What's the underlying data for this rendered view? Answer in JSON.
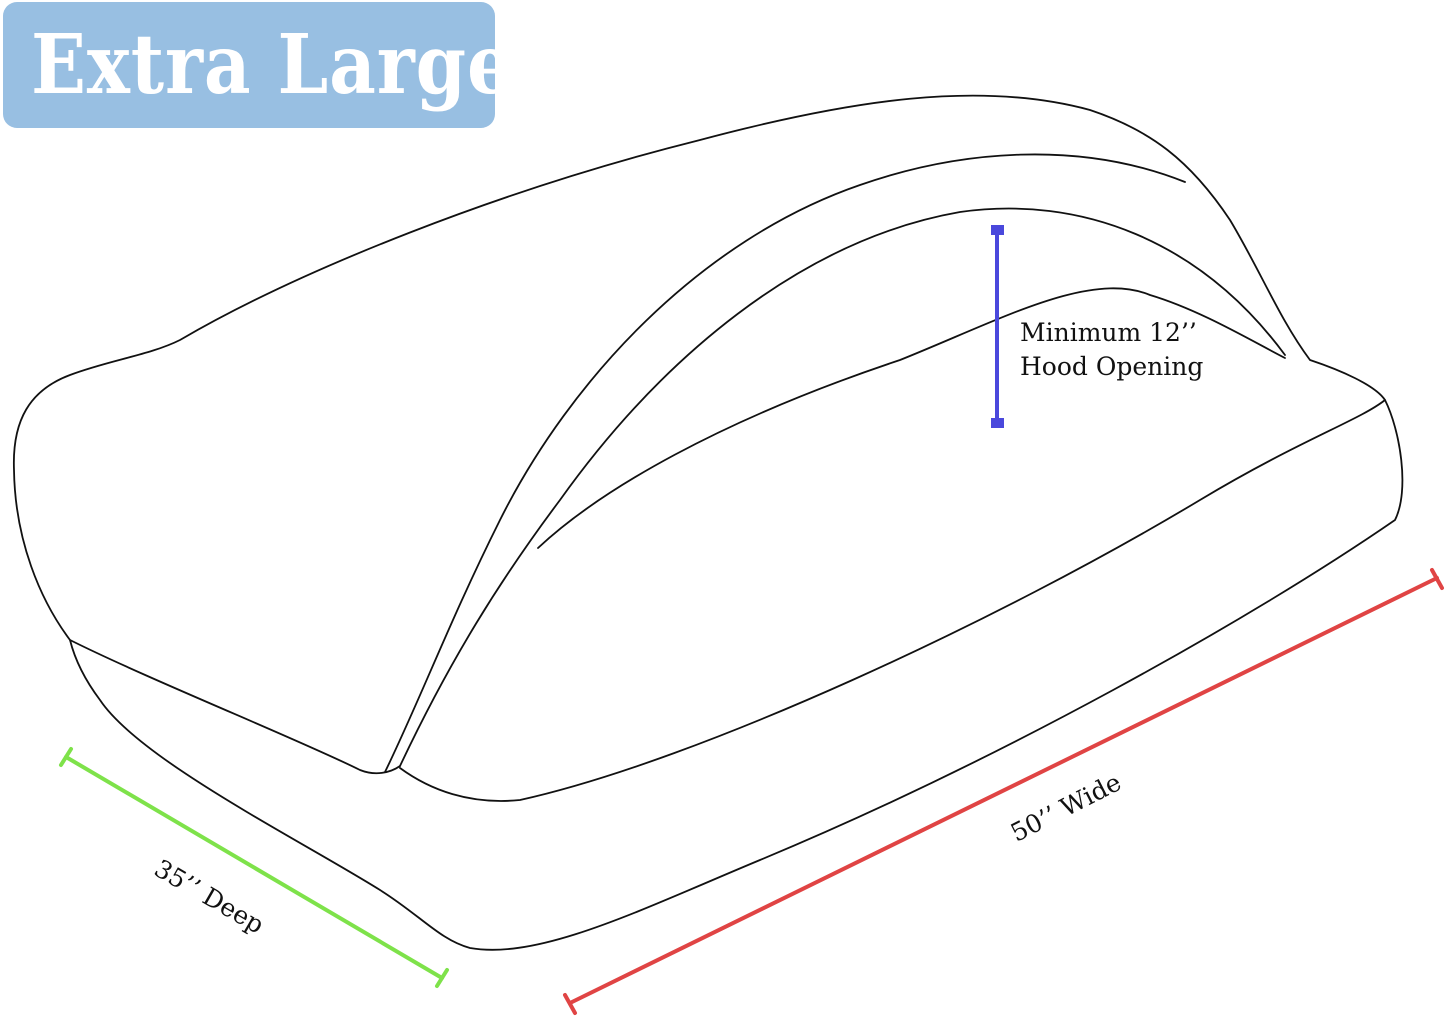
{
  "size_badge": {
    "label": "Extra Large",
    "background_color": "#98bfe2"
  },
  "dimensions": {
    "hood_opening": {
      "line1": "Minimum 12’’",
      "line2": "Hood Opening",
      "color": "#4a48dc"
    },
    "depth": {
      "label": "35’’ Deep",
      "color": "#7ee24a"
    },
    "width": {
      "label": "50’’ Wide",
      "color": "#e04444"
    }
  }
}
